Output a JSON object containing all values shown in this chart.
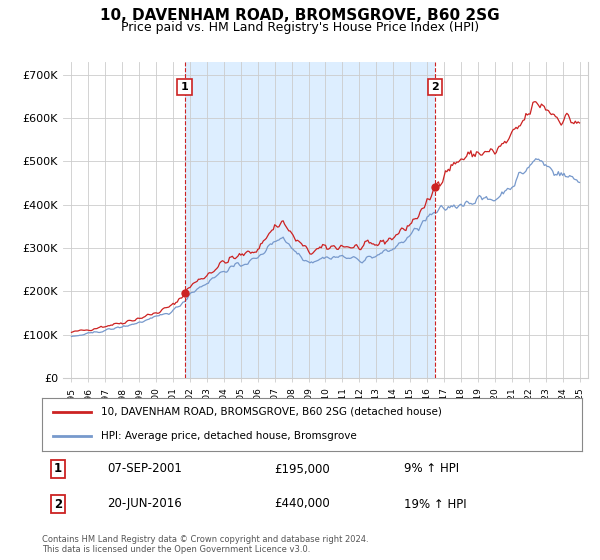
{
  "title": "10, DAVENHAM ROAD, BROMSGROVE, B60 2SG",
  "subtitle": "Price paid vs. HM Land Registry's House Price Index (HPI)",
  "title_fontsize": 11,
  "subtitle_fontsize": 9,
  "ylabel_ticks": [
    "£0",
    "£100K",
    "£200K",
    "£300K",
    "£400K",
    "£500K",
    "£600K",
    "£700K"
  ],
  "ytick_values": [
    0,
    100000,
    200000,
    300000,
    400000,
    500000,
    600000,
    700000
  ],
  "ylim": [
    0,
    730000
  ],
  "xlim_start": 1994.5,
  "xlim_end": 2025.5,
  "background_color": "#ffffff",
  "grid_color": "#cccccc",
  "shade_color": "#ddeeff",
  "house_color": "#cc2222",
  "hpi_color": "#7799cc",
  "legend_house_label": "10, DAVENHAM ROAD, BROMSGROVE, B60 2SG (detached house)",
  "legend_hpi_label": "HPI: Average price, detached house, Bromsgrove",
  "marker1_year": 2001.68,
  "marker1_value": 195000,
  "marker1_date": "07-SEP-2001",
  "marker1_price": "£195,000",
  "marker1_hpi": "9% ↑ HPI",
  "marker2_year": 2016.46,
  "marker2_value": 440000,
  "marker2_date": "20-JUN-2016",
  "marker2_price": "£440,000",
  "marker2_hpi": "19% ↑ HPI",
  "footer_text": "Contains HM Land Registry data © Crown copyright and database right 2024.\nThis data is licensed under the Open Government Licence v3.0."
}
